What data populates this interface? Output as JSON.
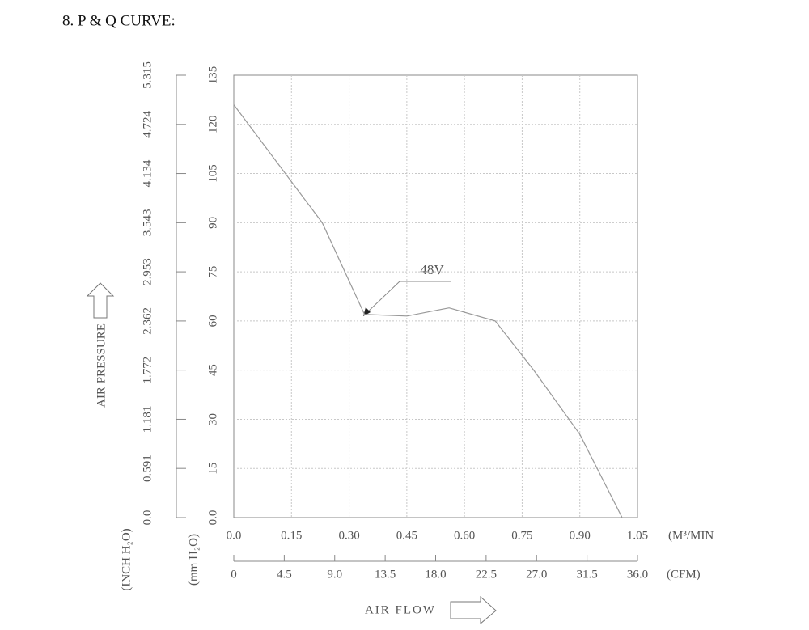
{
  "chart_data": {
    "type": "line",
    "title": "8. P & Q CURVE:",
    "x_label": "AIR FLOW",
    "y_label": "AIR PRESSURE",
    "x_unit": "(M³/MIN",
    "x2_unit": "(CFM)",
    "y_unit": "(mm H₂O)",
    "y2_unit": "(INCH H₂O)",
    "x": [
      0,
      0.23,
      0.34,
      0.45,
      0.56,
      0.68,
      0.78,
      0.9,
      1.01
    ],
    "series": [
      {
        "name": "48V",
        "color": "#999999",
        "values": [
          126,
          90,
          62,
          61.5,
          64,
          60,
          45,
          25.4,
          0
        ]
      }
    ],
    "xlim": [
      0,
      1.05
    ],
    "xticks": [
      {
        "value": 0,
        "label": "0.0"
      },
      0.15,
      {
        "value": 0.3,
        "label": "0.30"
      },
      0.45,
      {
        "value": 0.6,
        "label": "0.60"
      },
      0.75,
      {
        "value": 0.9,
        "label": "0.90"
      },
      1.05
    ],
    "x2lim": [
      0,
      36
    ],
    "x2ticks": [
      0,
      4.5,
      {
        "value": 9,
        "label": "9.0"
      },
      13.5,
      {
        "value": 18,
        "label": "18.0"
      },
      22.5,
      {
        "value": 27,
        "label": "27.0"
      },
      31.5,
      {
        "value": 36,
        "label": "36.0"
      }
    ],
    "ylim": [
      0,
      135
    ],
    "yticks": [
      {
        "value": 0,
        "label": "0.0"
      },
      15,
      30,
      45,
      60,
      75,
      90,
      105,
      120,
      135
    ],
    "y2lim": [
      0,
      5.315
    ],
    "y2ticks": [
      {
        "value": 0,
        "label": "0.0"
      },
      0.591,
      1.181,
      1.772,
      2.362,
      2.953,
      3.543,
      4.134,
      4.724,
      5.315
    ],
    "grid": true
  }
}
